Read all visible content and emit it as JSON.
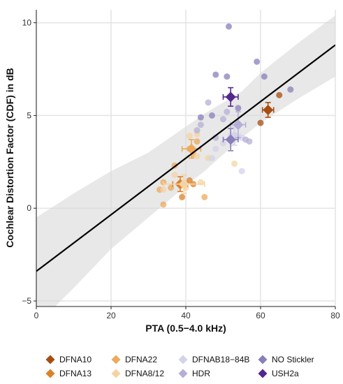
{
  "chart_data": {
    "type": "scatter",
    "xlabel": "PTA (0.5−4.0 kHz)",
    "ylabel": "Cochlear Distortion Factor (CDF) in dB",
    "xlim": [
      0,
      80
    ],
    "ylim": [
      -5.3,
      10.7
    ],
    "x_ticks": [
      "0",
      "20",
      "40",
      "60",
      "80"
    ],
    "y_ticks": [
      "−5",
      "0",
      "5",
      "10"
    ],
    "x_tick_values": [
      0,
      20,
      40,
      60,
      80
    ],
    "y_tick_values": [
      -5,
      0,
      5,
      10
    ],
    "grid": true,
    "legend_position": "bottom",
    "regression": {
      "intercept": -3.4,
      "slope": 0.1525
    },
    "confidence_band": {
      "x": [
        0,
        10,
        20,
        30,
        40,
        45,
        50,
        55,
        60,
        70,
        80
      ],
      "lower": [
        -6.3,
        -4.3,
        -2.2,
        -0.5,
        1.2,
        2.0,
        2.9,
        3.8,
        4.6,
        5.9,
        7.1
      ],
      "upper": [
        -0.5,
        0.8,
        2.0,
        3.0,
        4.4,
        5.1,
        5.7,
        6.3,
        7.3,
        8.9,
        10.4
      ]
    },
    "series": [
      {
        "name": "DFNA10",
        "color": "#a64d12",
        "points": [
          [
            62,
            5.3
          ],
          [
            65,
            6.1
          ],
          [
            60,
            4.6
          ]
        ],
        "mean": {
          "x": 62,
          "y": 5.3,
          "xerr": 1.5,
          "yerr": 0.4
        }
      },
      {
        "name": "DFNA13",
        "color": "#d9822b",
        "points": [
          [
            41,
            1.5
          ],
          [
            42,
            1.3
          ],
          [
            39,
            0.6
          ]
        ],
        "mean": {
          "x": 38.5,
          "y": 1.3,
          "xerr": 2.0,
          "yerr": 0.4
        }
      },
      {
        "name": "DFNA22",
        "color": "#ecaa5c",
        "points": [
          [
            33,
            1.0
          ],
          [
            34,
            1.4
          ],
          [
            37,
            2.3
          ],
          [
            34,
            0.2
          ],
          [
            36,
            1.1
          ],
          [
            41,
            3.2
          ],
          [
            43,
            3.6
          ],
          [
            42,
            2.9
          ],
          [
            45,
            0.6
          ]
        ],
        "mean": {
          "x": 41.5,
          "y": 3.2,
          "xerr": 2.5,
          "yerr": 0.5
        }
      },
      {
        "name": "DFNA8/12",
        "color": "#f6d3a3",
        "points": [
          [
            34,
            1.0
          ],
          [
            41,
            3.9
          ],
          [
            43,
            4.0
          ],
          [
            37,
            1.8
          ],
          [
            40,
            1.1
          ],
          [
            46,
            2.7
          ],
          [
            44,
            1.4
          ],
          [
            53,
            2.4
          ],
          [
            43,
            2.8
          ]
        ],
        "mean": {
          "x": 39.5,
          "y": 1.3,
          "xerr": 5.5,
          "yerr": 0.5
        }
      },
      {
        "name": "DFNAB18−84B",
        "color": "#d3d3ea",
        "points": [
          [
            47,
            2.7
          ],
          [
            50,
            3.5
          ],
          [
            55,
            2.0
          ],
          [
            55,
            3.8
          ],
          [
            48,
            3.2
          ]
        ],
        "mean": {
          "x": 53,
          "y": 3.9,
          "xerr": 1.5,
          "yerr": 0.5
        }
      },
      {
        "name": "HDR",
        "color": "#b4afd6",
        "points": [
          [
            46,
            5.7
          ],
          [
            51,
            5.2
          ],
          [
            56,
            3.7
          ],
          [
            48,
            3.8
          ],
          [
            57,
            3.6
          ],
          [
            50,
            4.8
          ],
          [
            43,
            4.2
          ],
          [
            44,
            4.5
          ]
        ],
        "mean": {
          "x": 54,
          "y": 4.5,
          "xerr": 2.0,
          "yerr": 0.7
        }
      },
      {
        "name": "NO Stickler",
        "color": "#8a7fb9",
        "points": [
          [
            51.5,
            9.8
          ],
          [
            48,
            7.2
          ],
          [
            51,
            7.1
          ],
          [
            59,
            7.9
          ],
          [
            61,
            7.1
          ],
          [
            68,
            6.4
          ],
          [
            44,
            4.9
          ],
          [
            47,
            5.0
          ],
          [
            54,
            5.4
          ]
        ],
        "mean": {
          "x": 52,
          "y": 3.7,
          "xerr": 2.0,
          "yerr": 0.6
        }
      },
      {
        "name": "USH2a",
        "color": "#54278f",
        "points": [],
        "mean": {
          "x": 52,
          "y": 6.0,
          "xerr": 2.0,
          "yerr": 0.5
        }
      }
    ],
    "legend": [
      "DFNA10",
      "DFNA13",
      "DFNA22",
      "DFNA8/12",
      "DFNAB18−84B",
      "HDR",
      "NO Stickler",
      "USH2a"
    ]
  }
}
